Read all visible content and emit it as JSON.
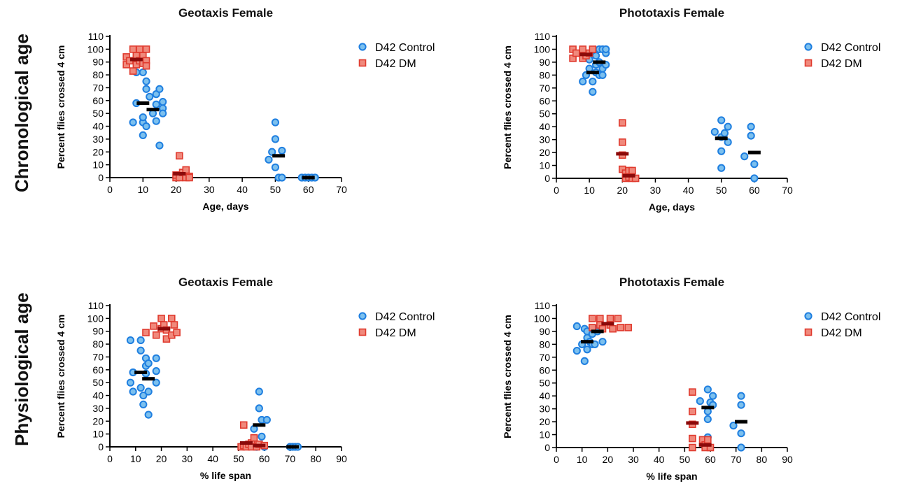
{
  "row_labels": [
    "Chronological age",
    "Physiological age"
  ],
  "colors": {
    "control_fill": "#7cc0ee",
    "control_stroke": "#1f7fe0",
    "dm_fill": "#f0897c",
    "dm_stroke": "#e03a2e",
    "median_control": "#000000",
    "median_dm": "#8b0a0a"
  },
  "chart_data": [
    {
      "type": "scatter",
      "title": "Geotaxis Female",
      "xlabel": "Age, days",
      "ylabel": "Percent flies crossed 4 cm",
      "xlim": [
        0,
        70
      ],
      "ylim": [
        0,
        110
      ],
      "xticks": [
        0,
        10,
        20,
        30,
        40,
        50,
        60,
        70
      ],
      "yticks": [
        0,
        10,
        20,
        30,
        40,
        50,
        60,
        70,
        80,
        90,
        100,
        110
      ],
      "legend": "right",
      "series": [
        {
          "name": "D42 Control",
          "marker": "circle",
          "points": [
            [
              8,
              58
            ],
            [
              10,
              43
            ],
            [
              10,
              33
            ],
            [
              10,
              47
            ],
            [
              11,
              40
            ],
            [
              11,
              75
            ],
            [
              11,
              69
            ],
            [
              12,
              63
            ],
            [
              13,
              50
            ],
            [
              14,
              65
            ],
            [
              14,
              57
            ],
            [
              14,
              44
            ],
            [
              15,
              25
            ],
            [
              15,
              69
            ],
            [
              16,
              54
            ],
            [
              16,
              59
            ],
            [
              16,
              50
            ],
            [
              8,
              82
            ],
            [
              10,
              82
            ],
            [
              7,
              43
            ],
            [
              48,
              14
            ],
            [
              50,
              43
            ],
            [
              50,
              30
            ],
            [
              50,
              8
            ],
            [
              51,
              0
            ],
            [
              52,
              21
            ],
            [
              49,
              20
            ],
            [
              52,
              0
            ],
            [
              58,
              0
            ],
            [
              59,
              0
            ],
            [
              60,
              0
            ],
            [
              61,
              0
            ],
            [
              62,
              0
            ]
          ],
          "medians": [
            [
              10,
              58
            ],
            [
              13,
              53
            ],
            [
              51,
              17
            ],
            [
              60,
              0
            ]
          ]
        },
        {
          "name": "D42 DM",
          "marker": "square",
          "points": [
            [
              5,
              94
            ],
            [
              5,
              88
            ],
            [
              6,
              91
            ],
            [
              7,
              83
            ],
            [
              7,
              100
            ],
            [
              8,
              95
            ],
            [
              8,
              88
            ],
            [
              9,
              100
            ],
            [
              9,
              91
            ],
            [
              10,
              89
            ],
            [
              10,
              95
            ],
            [
              11,
              100
            ],
            [
              11,
              91
            ],
            [
              11,
              87
            ],
            [
              20,
              0
            ],
            [
              20,
              2
            ],
            [
              21,
              17
            ],
            [
              21,
              0
            ],
            [
              22,
              4
            ],
            [
              23,
              6
            ],
            [
              23,
              0
            ],
            [
              24,
              1
            ],
            [
              24,
              0
            ]
          ],
          "medians": [
            [
              8,
              92
            ],
            [
              21,
              3
            ]
          ]
        }
      ]
    },
    {
      "type": "scatter",
      "title": "Phototaxis Female",
      "xlabel": "Age, days",
      "ylabel": "Percent flies crossed 4 cm",
      "xlim": [
        0,
        70
      ],
      "ylim": [
        0,
        110
      ],
      "xticks": [
        0,
        10,
        20,
        30,
        40,
        50,
        60,
        70
      ],
      "yticks": [
        0,
        10,
        20,
        30,
        40,
        50,
        60,
        70,
        80,
        90,
        100,
        110
      ],
      "legend": "right",
      "series": [
        {
          "name": "D42 Control",
          "marker": "circle",
          "points": [
            [
              8,
              75
            ],
            [
              9,
              80
            ],
            [
              10,
              92
            ],
            [
              10,
              85
            ],
            [
              11,
              67
            ],
            [
              11,
              75
            ],
            [
              12,
              88
            ],
            [
              12,
              82
            ],
            [
              12,
              95
            ],
            [
              13,
              100
            ],
            [
              13,
              90
            ],
            [
              13,
              80
            ],
            [
              14,
              100
            ],
            [
              14,
              85
            ],
            [
              14,
              80
            ],
            [
              15,
              97
            ],
            [
              15,
              88
            ],
            [
              15,
              100
            ],
            [
              48,
              36
            ],
            [
              50,
              45
            ],
            [
              50,
              32
            ],
            [
              50,
              21
            ],
            [
              50,
              8
            ],
            [
              51,
              35
            ],
            [
              52,
              28
            ],
            [
              52,
              40
            ],
            [
              57,
              17
            ],
            [
              59,
              40
            ],
            [
              59,
              33
            ],
            [
              60,
              11
            ],
            [
              60,
              0
            ]
          ],
          "medians": [
            [
              11,
              82
            ],
            [
              13,
              90
            ],
            [
              50,
              31
            ],
            [
              60,
              20
            ]
          ]
        },
        {
          "name": "D42 DM",
          "marker": "square",
          "points": [
            [
              5,
              100
            ],
            [
              5,
              93
            ],
            [
              6,
              97
            ],
            [
              8,
              100
            ],
            [
              8,
              93
            ],
            [
              9,
              95
            ],
            [
              10,
              97
            ],
            [
              11,
              100
            ],
            [
              20,
              43
            ],
            [
              20,
              28
            ],
            [
              20,
              18
            ],
            [
              20,
              7
            ],
            [
              21,
              4
            ],
            [
              21,
              1
            ],
            [
              21,
              0
            ],
            [
              22,
              6
            ],
            [
              22,
              1
            ],
            [
              23,
              6
            ],
            [
              23,
              0
            ],
            [
              24,
              0
            ]
          ],
          "medians": [
            [
              9,
              96
            ],
            [
              20,
              19
            ],
            [
              22,
              2
            ]
          ]
        }
      ]
    },
    {
      "type": "scatter",
      "title": "Geotaxis Female",
      "xlabel": "% life span",
      "ylabel": "Percent flies crossed 4 cm",
      "xlim": [
        0,
        90
      ],
      "ylim": [
        0,
        110
      ],
      "xticks": [
        0,
        10,
        20,
        30,
        40,
        50,
        60,
        70,
        80,
        90
      ],
      "yticks": [
        0,
        10,
        20,
        30,
        40,
        50,
        60,
        70,
        80,
        90,
        100,
        110
      ],
      "legend": "right",
      "series": [
        {
          "name": "D42 Control",
          "marker": "circle",
          "points": [
            [
              8,
              50
            ],
            [
              8,
              83
            ],
            [
              9,
              58
            ],
            [
              9,
              43
            ],
            [
              12,
              83
            ],
            [
              12,
              75
            ],
            [
              12,
              46
            ],
            [
              13,
              33
            ],
            [
              13,
              40
            ],
            [
              14,
              69
            ],
            [
              14,
              57
            ],
            [
              14,
              63
            ],
            [
              15,
              65
            ],
            [
              15,
              43
            ],
            [
              15,
              25
            ],
            [
              18,
              69
            ],
            [
              18,
              59
            ],
            [
              18,
              50
            ],
            [
              56,
              14
            ],
            [
              58,
              43
            ],
            [
              58,
              30
            ],
            [
              59,
              21
            ],
            [
              59,
              8
            ],
            [
              60,
              0
            ],
            [
              61,
              21
            ],
            [
              57,
              0
            ],
            [
              70,
              0
            ],
            [
              71,
              0
            ],
            [
              72,
              0
            ],
            [
              73,
              0
            ]
          ],
          "medians": [
            [
              12,
              58
            ],
            [
              15,
              53
            ],
            [
              58,
              17
            ],
            [
              71,
              0
            ]
          ]
        },
        {
          "name": "D42 DM",
          "marker": "square",
          "points": [
            [
              14,
              89
            ],
            [
              17,
              94
            ],
            [
              18,
              87
            ],
            [
              20,
              100
            ],
            [
              20,
              92
            ],
            [
              21,
              95
            ],
            [
              22,
              91
            ],
            [
              22,
              84
            ],
            [
              24,
              100
            ],
            [
              24,
              87
            ],
            [
              25,
              95
            ],
            [
              26,
              89
            ],
            [
              52,
              17
            ],
            [
              51,
              0
            ],
            [
              52,
              1
            ],
            [
              53,
              0
            ],
            [
              54,
              2
            ],
            [
              55,
              3
            ],
            [
              55,
              0
            ],
            [
              56,
              7
            ],
            [
              57,
              0
            ],
            [
              58,
              2
            ],
            [
              60,
              1
            ]
          ],
          "medians": [
            [
              21,
              92
            ],
            [
              53,
              3
            ],
            [
              58,
              1
            ]
          ]
        }
      ]
    },
    {
      "type": "scatter",
      "title": "Phototaxis Female",
      "xlabel": "% life span",
      "ylabel": "Percent flies crossed 4 cm",
      "xlim": [
        0,
        90
      ],
      "ylim": [
        0,
        110
      ],
      "xticks": [
        0,
        10,
        20,
        30,
        40,
        50,
        60,
        70,
        80,
        90
      ],
      "yticks": [
        0,
        10,
        20,
        30,
        40,
        50,
        60,
        70,
        80,
        90,
        100,
        110
      ],
      "legend": "right",
      "series": [
        {
          "name": "D42 Control",
          "marker": "circle",
          "points": [
            [
              8,
              94
            ],
            [
              8,
              75
            ],
            [
              10,
              80
            ],
            [
              11,
              92
            ],
            [
              11,
              67
            ],
            [
              12,
              90
            ],
            [
              12,
              85
            ],
            [
              12,
              76
            ],
            [
              13,
              82
            ],
            [
              14,
              80
            ],
            [
              14,
              88
            ],
            [
              15,
              80
            ],
            [
              15,
              92
            ],
            [
              16,
              90
            ],
            [
              18,
              82
            ],
            [
              56,
              36
            ],
            [
              59,
              45
            ],
            [
              59,
              28
            ],
            [
              59,
              22
            ],
            [
              59,
              8
            ],
            [
              60,
              35
            ],
            [
              61,
              40
            ],
            [
              61,
              33
            ],
            [
              69,
              17
            ],
            [
              72,
              40
            ],
            [
              72,
              33
            ],
            [
              72,
              11
            ],
            [
              72,
              0
            ]
          ],
          "medians": [
            [
              12,
              82
            ],
            [
              16,
              90
            ],
            [
              59,
              31
            ],
            [
              72,
              20
            ]
          ]
        },
        {
          "name": "D42 DM",
          "marker": "square",
          "points": [
            [
              14,
              100
            ],
            [
              14,
              93
            ],
            [
              17,
              100
            ],
            [
              17,
              95
            ],
            [
              18,
              92
            ],
            [
              21,
              100
            ],
            [
              21,
              95
            ],
            [
              22,
              92
            ],
            [
              24,
              100
            ],
            [
              25,
              93
            ],
            [
              28,
              93
            ],
            [
              53,
              43
            ],
            [
              53,
              28
            ],
            [
              53,
              18
            ],
            [
              53,
              7
            ],
            [
              53,
              0
            ],
            [
              57,
              6
            ],
            [
              58,
              2
            ],
            [
              58,
              0
            ],
            [
              59,
              6
            ],
            [
              60,
              0
            ]
          ],
          "medians": [
            [
              20,
              96
            ],
            [
              53,
              19
            ],
            [
              58,
              2
            ]
          ]
        }
      ]
    }
  ]
}
